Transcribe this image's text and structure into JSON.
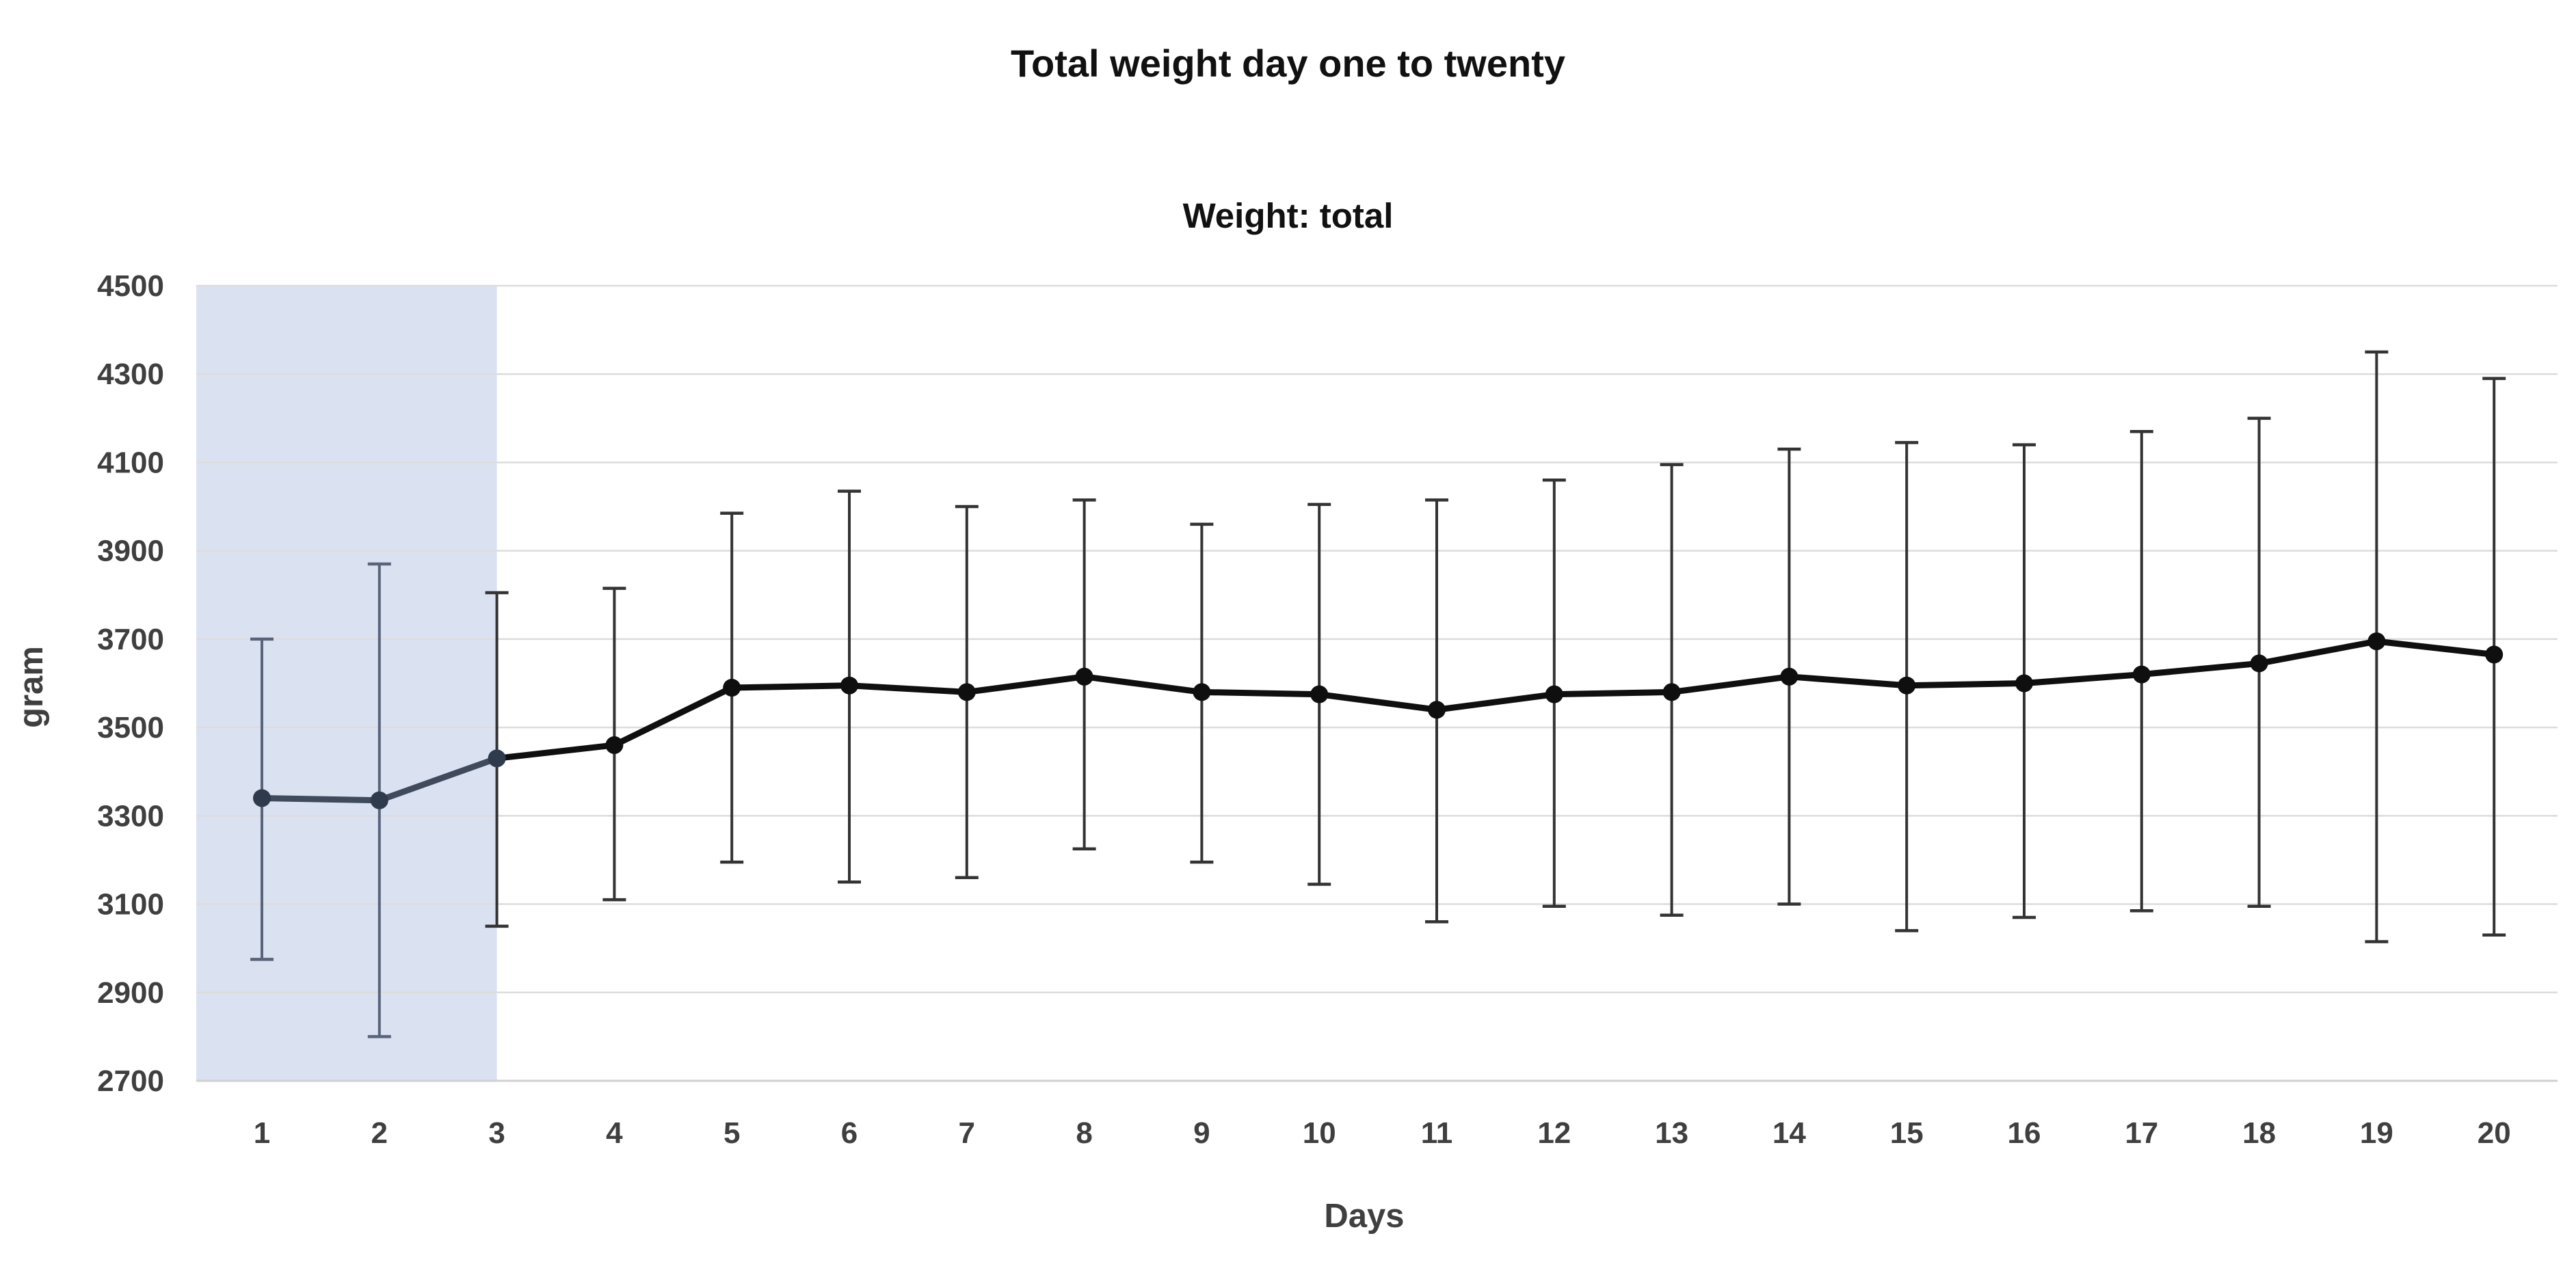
{
  "header": {
    "title": "Total weight day one to twenty"
  },
  "chart_data": {
    "type": "line",
    "title": "Weight: total",
    "xlabel": "Days",
    "ylabel": "gram",
    "x": [
      1,
      2,
      3,
      4,
      5,
      6,
      7,
      8,
      9,
      10,
      11,
      12,
      13,
      14,
      15,
      16,
      17,
      18,
      19,
      20
    ],
    "series": [
      {
        "values": [
          3340,
          3335,
          3430,
          3460,
          3590,
          3595,
          3580,
          3615,
          3580,
          3575,
          3540,
          3575,
          3580,
          3615,
          3595,
          3600,
          3620,
          3645,
          3695,
          3665
        ],
        "error_low": [
          2975,
          2800,
          3050,
          3110,
          3195,
          3150,
          3160,
          3225,
          3195,
          3145,
          3060,
          3095,
          3075,
          3100,
          3040,
          3070,
          3085,
          3095,
          3015,
          3030
        ],
        "error_high": [
          3700,
          3870,
          3805,
          3815,
          3985,
          4035,
          4000,
          4015,
          3960,
          4005,
          4015,
          4060,
          4095,
          4130,
          4145,
          4140,
          4170,
          4200,
          4350,
          4290
        ]
      }
    ],
    "ylim": [
      2700,
      4500
    ],
    "yticks": [
      2700,
      2900,
      3100,
      3300,
      3500,
      3700,
      3900,
      4100,
      4300,
      4500
    ],
    "grid": "horizontal",
    "legend": "none",
    "highlight_band": {
      "from_day": 1,
      "to_day": 3,
      "color": "#dae2f2"
    },
    "colors": {
      "line": "#0f0f0f",
      "marker": "#0f0f0f",
      "error_bar": "#333333",
      "band_line": "#3f4a5d",
      "band_marker": "#2f3a4c",
      "band_error_bar": "#59647a",
      "gridline": "#dcdcdc",
      "axis_line": "#d0d0d0",
      "tick_text": "#3f3f3f",
      "title_text": "#111111"
    }
  }
}
